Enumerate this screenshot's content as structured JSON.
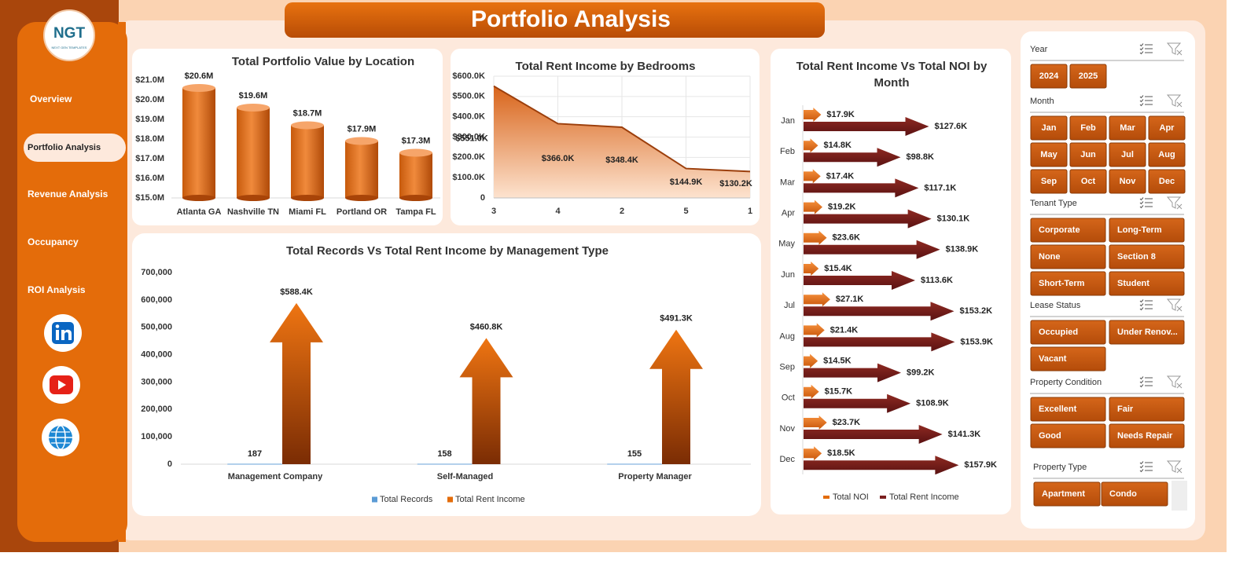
{
  "header": {
    "title": "Portfolio Analysis"
  },
  "logo": {
    "text": "NGT",
    "tagline": "NEXT GEN TEMPLATES"
  },
  "nav": [
    "Overview",
    "Portfolio Analysis",
    "Revenue Analysis",
    "Occupancy",
    "ROI Analysis"
  ],
  "chart_data": [
    {
      "type": "bar",
      "title": "Total Portfolio Value by Location",
      "categories": [
        "Atlanta GA",
        "Nashville TN",
        "Miami FL",
        "Portland OR",
        "Tampa FL"
      ],
      "values": [
        20.6,
        19.6,
        18.7,
        17.9,
        17.3
      ],
      "value_labels": [
        "$20.6M",
        "$19.6M",
        "$18.7M",
        "$17.9M",
        "$17.3M"
      ],
      "color": "#e36c0a",
      "ylim": [
        15,
        21
      ],
      "yticks": [
        {
          "value": 15,
          "label": "$15.0M"
        },
        {
          "value": 16,
          "label": "$16.0M"
        },
        {
          "value": 17,
          "label": "$17.0M"
        },
        {
          "value": 18,
          "label": "$18.0M"
        },
        {
          "value": 19,
          "label": "$19.0M"
        },
        {
          "value": 20,
          "label": "$20.0M"
        },
        {
          "value": 21,
          "label": "$21.0M"
        }
      ]
    },
    {
      "type": "area",
      "title": "Total Rent Income by Bedrooms",
      "categories": [
        "3",
        "4",
        "2",
        "5",
        "1"
      ],
      "values": [
        551.0,
        366.0,
        348.4,
        144.9,
        130.2
      ],
      "value_labels": [
        "$551.0K",
        "$366.0K",
        "$348.4K",
        "$144.9K",
        "$130.2K"
      ],
      "color": "#9c3f0c",
      "ylim": [
        0,
        600
      ],
      "yticks": [
        0,
        {
          "value": 100,
          "label": "$100.0K"
        },
        {
          "value": 200,
          "label": "$200.0K"
        },
        {
          "value": 300,
          "label": "$300.0K"
        },
        {
          "value": 400,
          "label": "$400.0K"
        },
        {
          "value": 500,
          "label": "$500.0K"
        },
        {
          "value": 600,
          "label": "$600.0K"
        }
      ],
      "grid": true
    },
    {
      "type": "bar",
      "title": "Total Records Vs Total Rent Income by Management Type",
      "categories": [
        "Management Company",
        "Self-Managed",
        "Property Manager"
      ],
      "series": [
        {
          "name": "Total Records",
          "color": "#5b9bd5",
          "values": [
            187,
            158,
            155
          ]
        },
        {
          "name": "Total Rent Income",
          "color": "#e36c0a",
          "values": [
            588400,
            460800,
            491300
          ],
          "value_labels": [
            "$588.4K",
            "$460.8K",
            "$491.3K"
          ]
        }
      ],
      "ylim": [
        0,
        700000
      ],
      "yticks": [
        0,
        {
          "value": 100000,
          "label": "100,000"
        },
        {
          "value": 200000,
          "label": "200,000"
        },
        {
          "value": 300000,
          "label": "300,000"
        },
        {
          "value": 400000,
          "label": "400,000"
        },
        {
          "value": 500000,
          "label": "500,000"
        },
        {
          "value": 600000,
          "label": "600,000"
        },
        {
          "value": 700000,
          "label": "700,000"
        }
      ],
      "legend": "bottom"
    },
    {
      "type": "bar",
      "orientation": "horizontal",
      "title": "Total Rent Income Vs Total NOI by Month",
      "categories": [
        "Jan",
        "Feb",
        "Mar",
        "Apr",
        "May",
        "Jun",
        "Jul",
        "Aug",
        "Sep",
        "Oct",
        "Nov",
        "Dec"
      ],
      "series": [
        {
          "name": "Total NOI",
          "color": "#e36c0a",
          "values": [
            17.9,
            14.8,
            17.4,
            19.2,
            23.6,
            15.4,
            27.1,
            21.4,
            14.5,
            15.7,
            23.7,
            18.5
          ],
          "value_labels": [
            "$17.9K",
            "$14.8K",
            "$17.4K",
            "$19.2K",
            "$23.6K",
            "$15.4K",
            "$27.1K",
            "$21.4K",
            "$14.5K",
            "$15.7K",
            "$23.7K",
            "$18.5K"
          ]
        },
        {
          "name": "Total Rent Income",
          "color": "#7b1f1f",
          "values": [
            127.6,
            98.8,
            117.1,
            130.1,
            138.9,
            113.6,
            153.2,
            153.9,
            99.2,
            108.9,
            141.3,
            157.9
          ],
          "value_labels": [
            "$127.6K",
            "$98.8K",
            "$117.1K",
            "$130.1K",
            "$138.9K",
            "$113.6K",
            "$153.2K",
            "$153.9K",
            "$99.2K",
            "$108.9K",
            "$141.3K",
            "$157.9K"
          ]
        }
      ],
      "legend": "bottom"
    }
  ],
  "slicers": [
    {
      "title": "Year",
      "items": [
        "2024",
        "2025"
      ]
    },
    {
      "title": "Month",
      "items": [
        "Jan",
        "Feb",
        "Mar",
        "Apr",
        "May",
        "Jun",
        "Jul",
        "Aug",
        "Sep",
        "Oct",
        "Nov",
        "Dec"
      ]
    },
    {
      "title": "Tenant Type",
      "items": [
        "Corporate",
        "Long-Term",
        "None",
        "Section 8",
        "Short-Term",
        "Student"
      ]
    },
    {
      "title": "Lease Status",
      "items": [
        "Occupied",
        "Under Renov...",
        "Vacant"
      ]
    },
    {
      "title": "Property Condition",
      "items": [
        "Excellent",
        "Fair",
        "Good",
        "Needs Repair"
      ]
    },
    {
      "title": "Property Type",
      "items": [
        "Apartment",
        "Condo"
      ]
    }
  ]
}
